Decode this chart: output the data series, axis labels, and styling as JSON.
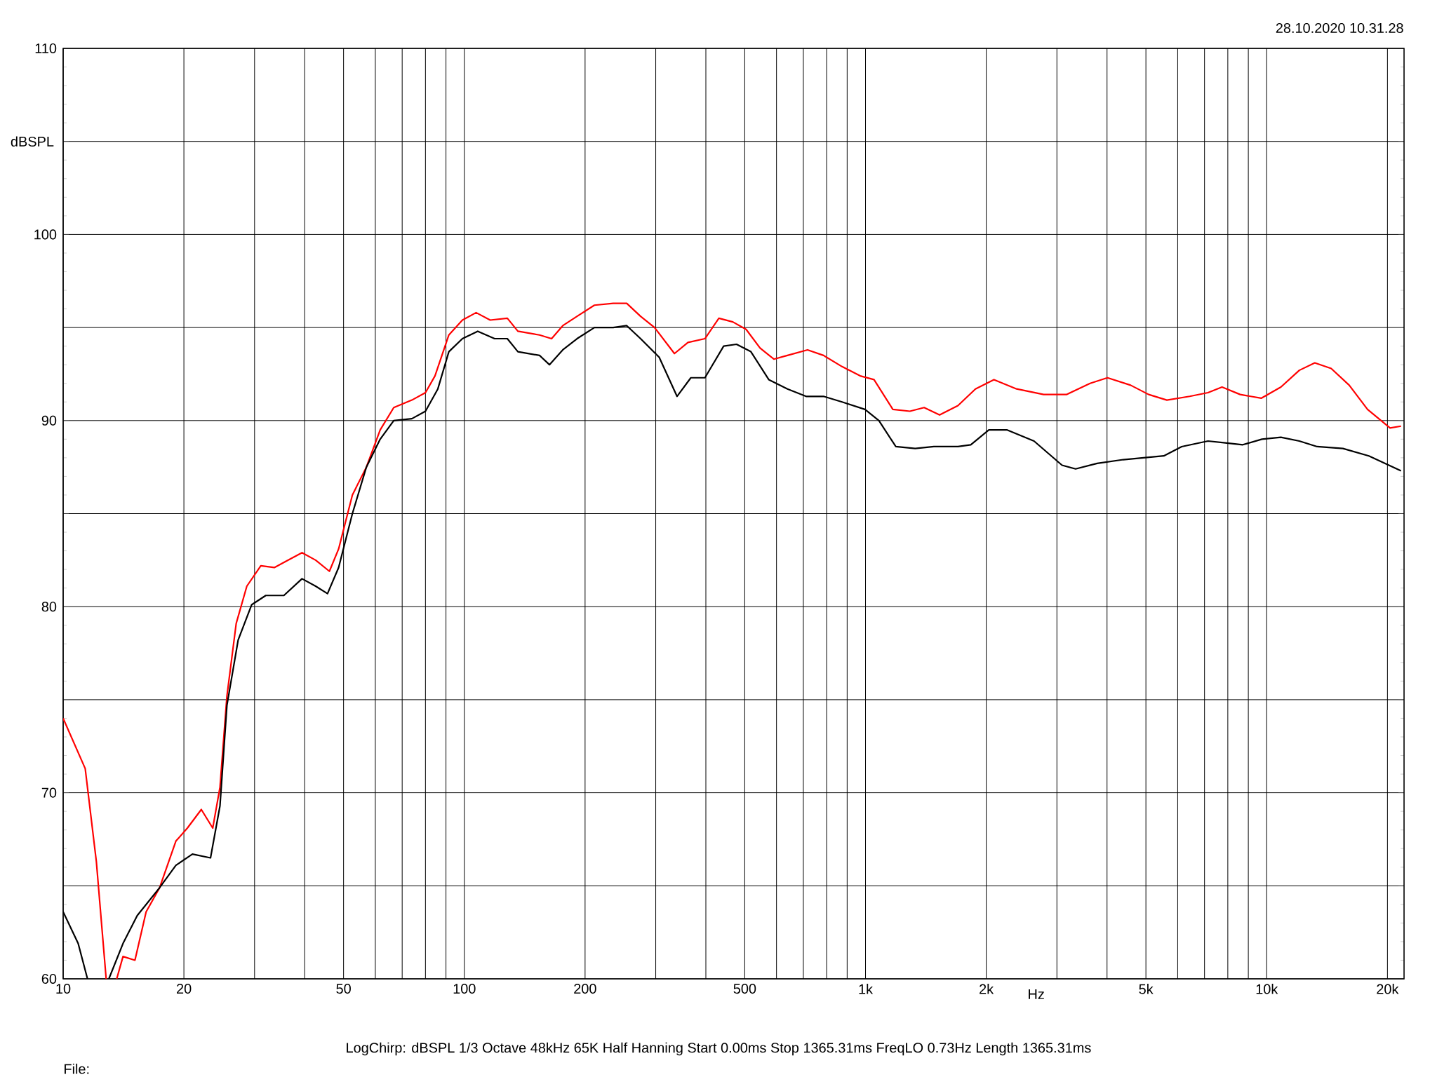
{
  "chart_data": {
    "type": "line",
    "xlabel": "Hz",
    "ylabel": "dBSPL",
    "annotations": [
      "28.10.2020 10.31.28",
      "LogChirp:  dBSPL   1/3 Octave   48kHz   65K   Half Hanning   Start 0.00ms    Stop 1365.31ms    FreqLO 0.73Hz    Length 1365.31ms",
      "File:"
    ],
    "log": "x",
    "grid": true,
    "xlim": [
      10,
      22000
    ],
    "ylim": [
      60,
      110
    ],
    "xticks": [
      10,
      20,
      {
        "value": 30,
        "label": null
      },
      {
        "value": 40,
        "label": null
      },
      50,
      {
        "value": 60,
        "label": null
      },
      {
        "value": 70,
        "label": null
      },
      {
        "value": 80,
        "label": null
      },
      {
        "value": 90,
        "label": null
      },
      100,
      200,
      {
        "value": 300,
        "label": null
      },
      {
        "value": 400,
        "label": null
      },
      500,
      {
        "value": 600,
        "label": null
      },
      {
        "value": 700,
        "label": null
      },
      {
        "value": 800,
        "label": null
      },
      {
        "value": 900,
        "label": null
      },
      {
        "value": 1000,
        "label": "1k"
      },
      {
        "value": 2000,
        "label": "2k"
      },
      {
        "value": 3000,
        "label": null
      },
      {
        "value": 4000,
        "label": null
      },
      {
        "value": 5000,
        "label": "5k"
      },
      {
        "value": 6000,
        "label": null
      },
      {
        "value": 7000,
        "label": null
      },
      {
        "value": 8000,
        "label": null
      },
      {
        "value": 9000,
        "label": null
      },
      {
        "value": 10000,
        "label": "10k"
      },
      {
        "value": 20000,
        "label": "20k"
      }
    ],
    "yticks": [
      60,
      {
        "value": 65,
        "label": null
      },
      70,
      {
        "value": 75,
        "label": null
      },
      80,
      {
        "value": 85,
        "label": null
      },
      90,
      {
        "value": 95,
        "label": null
      },
      100,
      {
        "value": 105,
        "label": null
      },
      110
    ],
    "series": [
      {
        "color": "#ff0000",
        "x": [
          10,
          11.35,
          12.1,
          12.8,
          13.2,
          13.6,
          14.1,
          15.1,
          16.1,
          17.4,
          19.1,
          20.4,
          22.1,
          23.6,
          24.6,
          25.6,
          27,
          28.7,
          31.1,
          33.6,
          36.4,
          39.4,
          42.6,
          46.1,
          48.6,
          52.6,
          57,
          61.7,
          66.7,
          74,
          80,
          84.5,
          91.5,
          98.9,
          107,
          116,
          128,
          136,
          154,
          165,
          176,
          191,
          211,
          235,
          254,
          275,
          298,
          334,
          361,
          398,
          431,
          467,
          504,
          546,
          591,
          639,
          717,
          786,
          874,
          970,
          1050,
          1170,
          1290,
          1400,
          1530,
          1700,
          1880,
          2090,
          2380,
          2780,
          3170,
          3630,
          4010,
          4580,
          5080,
          5640,
          6430,
          7140,
          7740,
          8590,
          9690,
          10850,
          12060,
          13180,
          14480,
          16060,
          17840,
          20300,
          21620
        ],
        "values": [
          74.0,
          71.3,
          66.3,
          60,
          null,
          60,
          61.2,
          61.0,
          63.6,
          64.9,
          67.4,
          68.1,
          69.1,
          68.1,
          70.3,
          75.2,
          79.1,
          81.1,
          82.2,
          82.1,
          82.5,
          82.9,
          82.5,
          81.9,
          83.1,
          86.0,
          87.5,
          89.5,
          90.7,
          91.1,
          91.5,
          92.4,
          94.6,
          95.4,
          95.8,
          95.4,
          95.5,
          94.8,
          94.6,
          94.4,
          95.1,
          95.6,
          96.2,
          96.3,
          96.3,
          95.6,
          95.0,
          93.6,
          94.2,
          94.4,
          95.5,
          95.3,
          94.9,
          93.9,
          93.3,
          93.5,
          93.8,
          93.5,
          92.9,
          92.4,
          92.2,
          90.6,
          90.5,
          90.7,
          90.3,
          90.8,
          91.7,
          92.2,
          91.7,
          91.4,
          91.4,
          92.0,
          92.3,
          91.9,
          91.4,
          91.1,
          91.3,
          91.5,
          91.8,
          91.4,
          91.2,
          91.8,
          92.7,
          93.1,
          92.8,
          91.9,
          90.6,
          89.6,
          89.7
        ]
      },
      {
        "color": "#000000",
        "x": [
          10,
          10.9,
          11.5,
          12.2,
          13.0,
          14.1,
          15.3,
          17.4,
          19.1,
          21,
          23.3,
          24.6,
          25.6,
          27.3,
          29.5,
          32,
          35.5,
          39.4,
          42.6,
          45.6,
          48.6,
          52.6,
          57,
          61.7,
          66.7,
          74,
          80,
          85.9,
          91.5,
          98.9,
          108,
          119,
          128,
          136,
          154,
          163,
          176,
          191,
          211,
          235,
          254,
          275,
          306,
          339,
          367,
          398,
          443,
          477,
          518,
          574,
          639,
          711,
          786,
          874,
          997,
          1080,
          1190,
          1330,
          1480,
          1700,
          1830,
          2030,
          2250,
          2630,
          3090,
          3340,
          3780,
          4390,
          5540,
          6140,
          7140,
          7890,
          8720,
          9730,
          10850,
          12060,
          13360,
          15490,
          17980,
          21620
        ],
        "values": [
          63.6,
          61.9,
          60,
          null,
          60,
          61.9,
          63.4,
          64.9,
          66.1,
          66.7,
          66.5,
          69.3,
          74.7,
          78.2,
          80.1,
          80.6,
          80.6,
          81.5,
          81.1,
          80.7,
          82.1,
          85.0,
          87.5,
          89.0,
          90.0,
          90.1,
          90.5,
          91.7,
          93.7,
          94.4,
          94.8,
          94.4,
          94.4,
          93.7,
          93.5,
          93.0,
          93.8,
          94.4,
          95.0,
          95.0,
          95.1,
          94.4,
          93.4,
          91.3,
          92.3,
          92.3,
          94.0,
          94.1,
          93.7,
          92.2,
          91.7,
          91.3,
          91.3,
          91.0,
          90.6,
          90.0,
          88.6,
          88.5,
          88.6,
          88.6,
          88.7,
          89.5,
          89.5,
          88.9,
          87.6,
          87.4,
          87.7,
          87.9,
          88.1,
          88.6,
          88.9,
          88.8,
          88.7,
          89.0,
          89.1,
          88.9,
          88.6,
          88.5,
          88.1,
          87.3
        ]
      }
    ]
  }
}
